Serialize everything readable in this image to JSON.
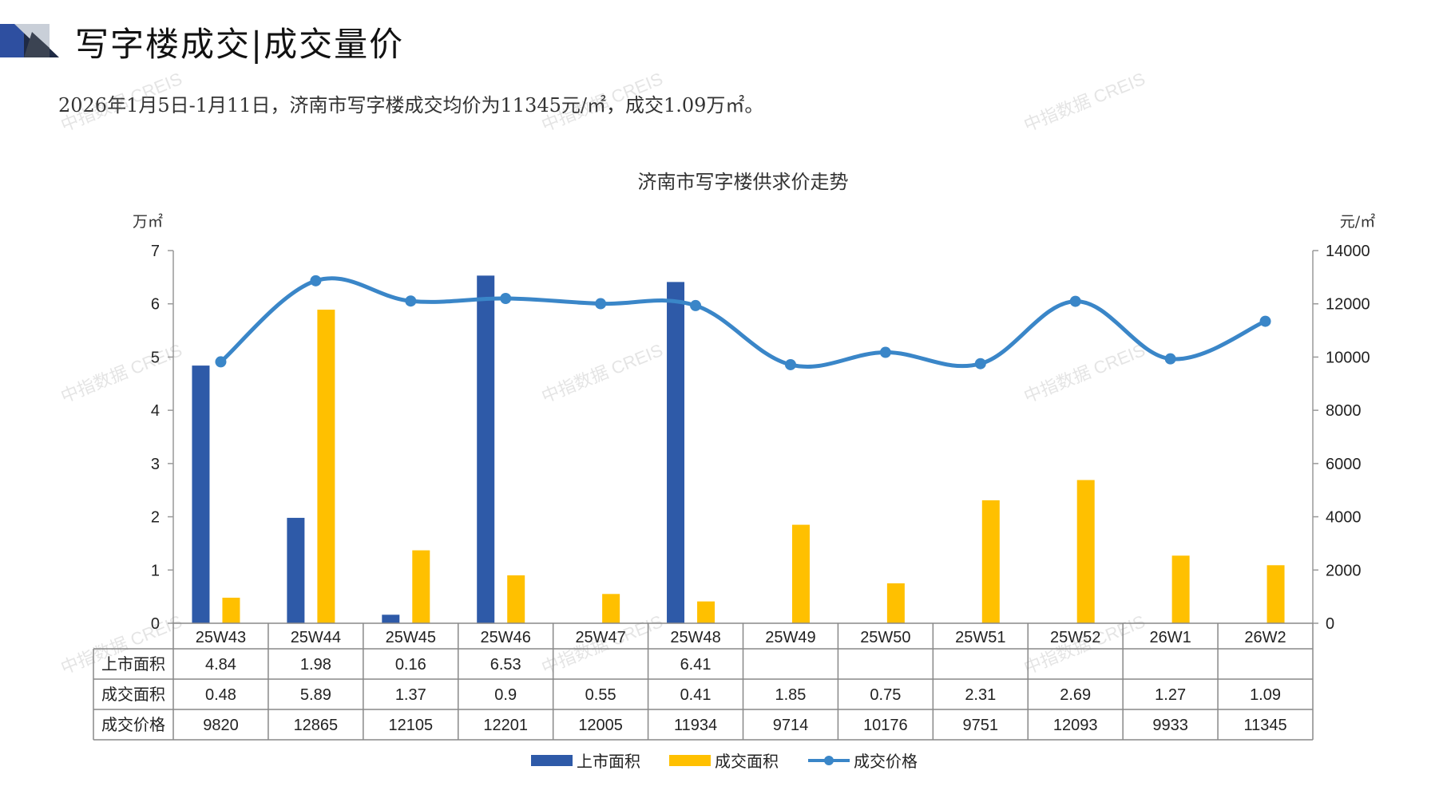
{
  "header": {
    "title": "写字楼成交|成交量价",
    "subtitle": "2026年1月5日-1月11日，济南市写字楼成交均价为11345元/㎡，成交1.09万㎡。"
  },
  "watermark": {
    "text1": "中指数据",
    "text2": "CREIS"
  },
  "colors": {
    "supply": "#2E5AA8",
    "deal_area": "#FFC000",
    "price": "#3A86C8",
    "grid": "#888888"
  },
  "chart_data": {
    "type": "bar+line",
    "title": "济南市写字楼供求价走势",
    "y_left_unit": "万㎡",
    "y_right_unit": "元/㎡",
    "y_left_range": [
      0,
      7
    ],
    "y_left_ticks": [
      "0",
      "1",
      "2",
      "3",
      "4",
      "5",
      "6",
      "7"
    ],
    "y_right_range": [
      0,
      14000
    ],
    "y_right_ticks": [
      "0",
      "2000",
      "4000",
      "6000",
      "8000",
      "10000",
      "12000",
      "14000"
    ],
    "categories": [
      "25W43",
      "25W44",
      "25W45",
      "25W46",
      "25W47",
      "25W48",
      "25W49",
      "25W50",
      "25W51",
      "25W52",
      "26W1",
      "26W2"
    ],
    "series": [
      {
        "name": "上市面积",
        "kind": "bar",
        "axis": "left",
        "values": [
          4.84,
          1.98,
          0.16,
          6.53,
          null,
          6.41,
          null,
          null,
          null,
          null,
          null,
          null
        ],
        "labels": [
          "4.84",
          "1.98",
          "0.16",
          "6.53",
          "",
          "6.41",
          "",
          "",
          "",
          "",
          "",
          ""
        ]
      },
      {
        "name": "成交面积",
        "kind": "bar",
        "axis": "left",
        "values": [
          0.48,
          5.89,
          1.37,
          0.9,
          0.55,
          0.41,
          1.85,
          0.75,
          2.31,
          2.69,
          1.27,
          1.09
        ],
        "labels": [
          "0.48",
          "5.89",
          "1.37",
          "0.9",
          "0.55",
          "0.41",
          "1.85",
          "0.75",
          "2.31",
          "2.69",
          "1.27",
          "1.09"
        ]
      },
      {
        "name": "成交价格",
        "kind": "line",
        "axis": "right",
        "values": [
          9820,
          12865,
          12105,
          12201,
          12005,
          11934,
          9714,
          10176,
          9751,
          12093,
          9933,
          11345
        ],
        "labels": [
          "9820",
          "12865",
          "12105",
          "12201",
          "12005",
          "11934",
          "9714",
          "10176",
          "9751",
          "12093",
          "9933",
          "11345"
        ]
      }
    ]
  }
}
